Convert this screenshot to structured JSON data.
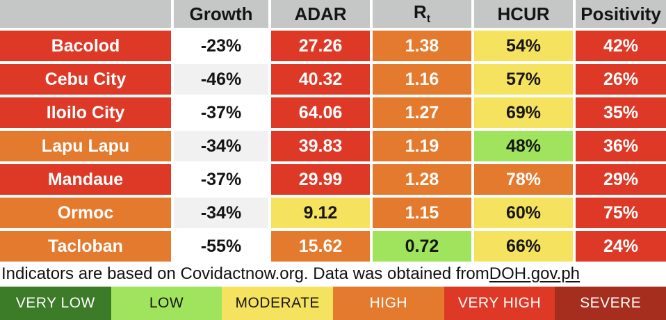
{
  "header": {
    "city_label": "",
    "growth": "Growth",
    "adar": "ADAR",
    "rt_main": "R",
    "rt_sub": "t",
    "hcur": "HCUR",
    "positivity": "Positivity"
  },
  "rows": [
    {
      "city": "Bacolod",
      "values": {
        "growth": "-23%",
        "adar": "27.26",
        "rt": "1.38",
        "hcur": "54%",
        "positivity": "42%"
      },
      "levels": {
        "city": "very_high",
        "growth": "white",
        "adar": "very_high",
        "rt": "high",
        "hcur": "moderate",
        "positivity": "very_high"
      }
    },
    {
      "city": "Cebu City",
      "values": {
        "growth": "-46%",
        "adar": "40.32",
        "rt": "1.16",
        "hcur": "57%",
        "positivity": "26%"
      },
      "levels": {
        "city": "very_high",
        "growth": "white_alt",
        "adar": "very_high",
        "rt": "high",
        "hcur": "moderate",
        "positivity": "very_high"
      }
    },
    {
      "city": "Iloilo City",
      "values": {
        "growth": "-37%",
        "adar": "64.06",
        "rt": "1.27",
        "hcur": "69%",
        "positivity": "35%"
      },
      "levels": {
        "city": "very_high",
        "growth": "white",
        "adar": "very_high",
        "rt": "high",
        "hcur": "moderate",
        "positivity": "very_high"
      }
    },
    {
      "city": "Lapu Lapu",
      "values": {
        "growth": "-34%",
        "adar": "39.83",
        "rt": "1.19",
        "hcur": "48%",
        "positivity": "36%"
      },
      "levels": {
        "city": "high",
        "growth": "white_alt",
        "adar": "very_high",
        "rt": "high",
        "hcur": "low",
        "positivity": "very_high"
      }
    },
    {
      "city": "Mandaue",
      "values": {
        "growth": "-37%",
        "adar": "29.99",
        "rt": "1.28",
        "hcur": "78%",
        "positivity": "29%"
      },
      "levels": {
        "city": "very_high",
        "growth": "white",
        "adar": "very_high",
        "rt": "high",
        "hcur": "high",
        "positivity": "very_high"
      }
    },
    {
      "city": "Ormoc",
      "values": {
        "growth": "-34%",
        "adar": "9.12",
        "rt": "1.15",
        "hcur": "60%",
        "positivity": "75%"
      },
      "levels": {
        "city": "high",
        "growth": "white_alt",
        "adar": "moderate",
        "rt": "high",
        "hcur": "moderate",
        "positivity": "very_high"
      }
    },
    {
      "city": "Tacloban",
      "values": {
        "growth": "-55%",
        "adar": "15.62",
        "rt": "0.72",
        "hcur": "66%",
        "positivity": "24%"
      },
      "levels": {
        "city": "high",
        "growth": "white",
        "adar": "high",
        "rt": "low",
        "hcur": "moderate",
        "positivity": "very_high"
      }
    }
  ],
  "footer": {
    "text_before": "Indicators are based on Covidactnow.org. Data was obtained from ",
    "link": "DOH.gov.ph"
  },
  "legend": [
    {
      "label": "VERY LOW",
      "level": "very_low"
    },
    {
      "label": "LOW",
      "level": "low"
    },
    {
      "label": "MODERATE",
      "level": "moderate"
    },
    {
      "label": "HIGH",
      "level": "high"
    },
    {
      "label": "VERY HIGH",
      "level": "very_high"
    },
    {
      "label": "SEVERE",
      "level": "severe"
    }
  ],
  "levels": {
    "very_low": {
      "bg": "#3C7B28",
      "fg": "#FFFFFF"
    },
    "low": {
      "bg": "#A0E45D",
      "fg": "#161616"
    },
    "moderate": {
      "bg": "#F5E25F",
      "fg": "#161616"
    },
    "high": {
      "bg": "#E47A2E",
      "fg": "#FFFFFF"
    },
    "very_high": {
      "bg": "#DE3927",
      "fg": "#FFFFFF"
    },
    "severe": {
      "bg": "#A52E1E",
      "fg": "#FFFFFF"
    },
    "white": {
      "bg": "#FFFFFF",
      "fg": "#141414"
    },
    "white_alt": {
      "bg": "#F2F1F1",
      "fg": "#141414"
    }
  },
  "colors": {
    "header_bg": "#C5C6C6",
    "page_bg": "#FFFFFF"
  }
}
